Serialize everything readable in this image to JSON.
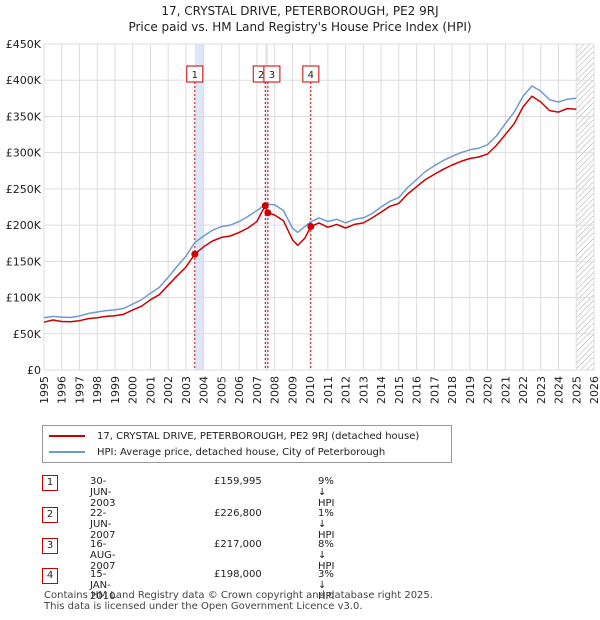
{
  "title": "17, CRYSTAL DRIVE, PETERBOROUGH, PE2 9RJ",
  "subtitle": "Price paid vs. HM Land Registry's House Price Index (HPI)",
  "colors": {
    "property": "#cc0000",
    "hpi": "#6f9bd1",
    "shade": "#dde6f7",
    "grid": "#dddddd",
    "hatch": "#aaaaaa"
  },
  "chart_data": {
    "type": "line",
    "xlim": [
      1995,
      2026
    ],
    "ylim": [
      0,
      450000
    ],
    "y_ticks": [
      {
        "value": 0,
        "label": "£0"
      },
      {
        "value": 50000,
        "label": "£50K"
      },
      {
        "value": 100000,
        "label": "£100K"
      },
      {
        "value": 150000,
        "label": "£150K"
      },
      {
        "value": 200000,
        "label": "£200K"
      },
      {
        "value": 250000,
        "label": "£250K"
      },
      {
        "value": 300000,
        "label": "£300K"
      },
      {
        "value": 350000,
        "label": "£350K"
      },
      {
        "value": 400000,
        "label": "£400K"
      },
      {
        "value": 450000,
        "label": "£450K"
      }
    ],
    "x_ticks": [
      "1995",
      "1996",
      "1997",
      "1998",
      "1999",
      "2000",
      "2001",
      "2002",
      "2003",
      "2004",
      "2005",
      "2006",
      "2007",
      "2008",
      "2009",
      "2010",
      "2011",
      "2012",
      "2013",
      "2014",
      "2015",
      "2016",
      "2017",
      "2018",
      "2019",
      "2020",
      "2021",
      "2022",
      "2023",
      "2024",
      "2025",
      "2026"
    ],
    "shaded_ranges": [
      [
        2003.5,
        2004.0
      ],
      [
        2007.47,
        2007.62
      ]
    ],
    "forecast_start": 2025.0,
    "series": [
      {
        "name": "17, CRYSTAL DRIVE, PETERBOROUGH, PE2 9RJ (detached house)",
        "key": "property",
        "points": [
          [
            1995,
            66000
          ],
          [
            1995.5,
            69000
          ],
          [
            1996,
            67000
          ],
          [
            1996.5,
            66500
          ],
          [
            1997,
            68000
          ],
          [
            1997.5,
            71000
          ],
          [
            1998,
            72000
          ],
          [
            1998.5,
            74000
          ],
          [
            1999,
            75000
          ],
          [
            1999.5,
            77000
          ],
          [
            2000,
            83000
          ],
          [
            2000.5,
            88000
          ],
          [
            2001,
            97000
          ],
          [
            2001.5,
            104000
          ],
          [
            2002,
            117000
          ],
          [
            2002.5,
            130000
          ],
          [
            2003,
            142000
          ],
          [
            2003.5,
            159995
          ],
          [
            2004,
            170000
          ],
          [
            2004.5,
            178000
          ],
          [
            2005,
            183000
          ],
          [
            2005.5,
            185000
          ],
          [
            2006,
            190000
          ],
          [
            2006.5,
            196000
          ],
          [
            2007,
            205000
          ],
          [
            2007.47,
            226800
          ],
          [
            2007.62,
            217000
          ],
          [
            2008,
            214000
          ],
          [
            2008.5,
            206000
          ],
          [
            2009,
            180000
          ],
          [
            2009.3,
            172000
          ],
          [
            2009.7,
            182000
          ],
          [
            2010.04,
            198000
          ],
          [
            2010.5,
            203000
          ],
          [
            2011,
            197000
          ],
          [
            2011.5,
            201000
          ],
          [
            2012,
            196000
          ],
          [
            2012.5,
            201000
          ],
          [
            2013,
            203000
          ],
          [
            2013.5,
            210000
          ],
          [
            2014,
            218000
          ],
          [
            2014.5,
            226000
          ],
          [
            2015,
            230000
          ],
          [
            2015.5,
            243000
          ],
          [
            2016,
            253000
          ],
          [
            2016.5,
            263000
          ],
          [
            2017,
            270000
          ],
          [
            2017.5,
            277000
          ],
          [
            2018,
            283000
          ],
          [
            2018.5,
            288000
          ],
          [
            2019,
            292000
          ],
          [
            2019.5,
            294000
          ],
          [
            2020,
            298000
          ],
          [
            2020.5,
            310000
          ],
          [
            2021,
            325000
          ],
          [
            2021.5,
            340000
          ],
          [
            2022,
            363000
          ],
          [
            2022.5,
            378000
          ],
          [
            2023,
            370000
          ],
          [
            2023.5,
            358000
          ],
          [
            2024,
            356000
          ],
          [
            2024.5,
            361000
          ],
          [
            2025,
            360000
          ]
        ]
      },
      {
        "name": "HPI: Average price, detached house, City of Peterborough",
        "key": "hpi",
        "points": [
          [
            1995,
            72000
          ],
          [
            1995.5,
            74000
          ],
          [
            1996,
            73000
          ],
          [
            1996.5,
            72500
          ],
          [
            1997,
            74500
          ],
          [
            1997.5,
            78000
          ],
          [
            1998,
            80000
          ],
          [
            1998.5,
            82000
          ],
          [
            1999,
            83000
          ],
          [
            1999.5,
            85000
          ],
          [
            2000,
            91000
          ],
          [
            2000.5,
            97000
          ],
          [
            2001,
            106000
          ],
          [
            2001.5,
            114000
          ],
          [
            2002,
            128000
          ],
          [
            2002.5,
            143000
          ],
          [
            2003,
            157000
          ],
          [
            2003.5,
            176000
          ],
          [
            2004,
            185000
          ],
          [
            2004.5,
            193000
          ],
          [
            2005,
            198000
          ],
          [
            2005.5,
            200000
          ],
          [
            2006,
            205000
          ],
          [
            2006.5,
            212000
          ],
          [
            2007,
            220000
          ],
          [
            2007.5,
            229000
          ],
          [
            2008,
            228000
          ],
          [
            2008.5,
            220000
          ],
          [
            2009,
            196000
          ],
          [
            2009.3,
            190000
          ],
          [
            2009.7,
            198000
          ],
          [
            2010,
            204000
          ],
          [
            2010.5,
            210000
          ],
          [
            2011,
            205000
          ],
          [
            2011.5,
            208000
          ],
          [
            2012,
            203000
          ],
          [
            2012.5,
            208000
          ],
          [
            2013,
            210000
          ],
          [
            2013.5,
            216000
          ],
          [
            2014,
            225000
          ],
          [
            2014.5,
            233000
          ],
          [
            2015,
            238000
          ],
          [
            2015.5,
            252000
          ],
          [
            2016,
            263000
          ],
          [
            2016.5,
            274000
          ],
          [
            2017,
            282000
          ],
          [
            2017.5,
            289000
          ],
          [
            2018,
            295000
          ],
          [
            2018.5,
            300000
          ],
          [
            2019,
            304000
          ],
          [
            2019.5,
            306000
          ],
          [
            2020,
            311000
          ],
          [
            2020.5,
            323000
          ],
          [
            2021,
            340000
          ],
          [
            2021.5,
            356000
          ],
          [
            2022,
            378000
          ],
          [
            2022.5,
            392000
          ],
          [
            2023,
            385000
          ],
          [
            2023.5,
            373000
          ],
          [
            2024,
            370000
          ],
          [
            2024.5,
            374000
          ],
          [
            2025,
            375000
          ]
        ]
      }
    ]
  },
  "transactions": [
    {
      "num": "1",
      "date": "30-JUN-2003",
      "price": "£159,995",
      "hpi": "9% ↓ HPI",
      "year": 2003.5,
      "value": 159995
    },
    {
      "num": "2",
      "date": "22-JUN-2007",
      "price": "£226,800",
      "hpi": "1% ↓ HPI",
      "year": 2007.47,
      "value": 226800
    },
    {
      "num": "3",
      "date": "16-AUG-2007",
      "price": "£217,000",
      "hpi": "8% ↓ HPI",
      "year": 2007.62,
      "value": 217000
    },
    {
      "num": "4",
      "date": "15-JAN-2010",
      "price": "£198,000",
      "hpi": "3% ↓ HPI",
      "year": 2010.04,
      "value": 198000
    }
  ],
  "legend": {
    "property_label": "17, CRYSTAL DRIVE, PETERBOROUGH, PE2 9RJ (detached house)",
    "hpi_label": "HPI: Average price, detached house, City of Peterborough"
  },
  "footer": {
    "line1": "Contains HM Land Registry data © Crown copyright and database right 2025.",
    "line2": "This data is licensed under the Open Government Licence v3.0."
  }
}
